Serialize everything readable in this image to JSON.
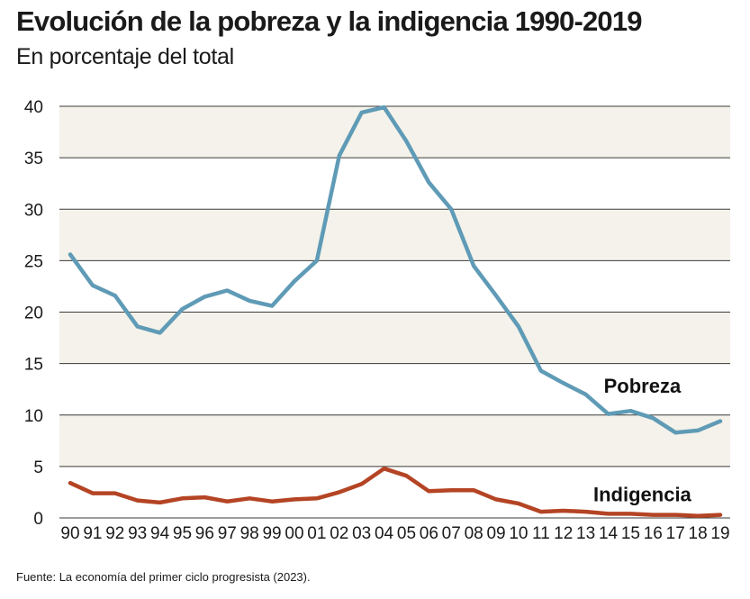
{
  "chart_data": {
    "type": "line",
    "title": "Evolución de la pobreza y la indigencia 1990-2019",
    "subtitle": "En porcentaje del total",
    "source": "Fuente: La economía del primer ciclo progresista (2023).",
    "xlabel": "",
    "ylabel": "",
    "ylim": [
      0,
      40
    ],
    "yticks": [
      "0",
      "5",
      "10",
      "15",
      "20",
      "25",
      "30",
      "35",
      "40"
    ],
    "categories": [
      "90",
      "91",
      "92",
      "93",
      "94",
      "95",
      "96",
      "97",
      "98",
      "99",
      "00",
      "01",
      "02",
      "03",
      "04",
      "05",
      "06",
      "07",
      "08",
      "09",
      "10",
      "11",
      "12",
      "13",
      "14",
      "15",
      "16",
      "17",
      "18",
      "19"
    ],
    "series": [
      {
        "name": "Pobreza",
        "color": "#5f9bb6",
        "values": [
          25.6,
          22.6,
          21.6,
          18.6,
          18.0,
          20.3,
          21.5,
          22.1,
          21.1,
          20.6,
          23.0,
          25.0,
          35.2,
          39.4,
          39.9,
          36.6,
          32.6,
          30.0,
          24.5,
          21.6,
          18.6,
          14.3,
          13.1,
          12.0,
          10.1,
          10.4,
          9.7,
          8.3,
          8.5,
          9.4
        ]
      },
      {
        "name": "Indigencia",
        "color": "#b44424",
        "values": [
          3.4,
          2.4,
          2.4,
          1.7,
          1.5,
          1.9,
          2.0,
          1.6,
          1.9,
          1.6,
          1.8,
          1.9,
          2.5,
          3.3,
          4.8,
          4.1,
          2.6,
          2.7,
          2.7,
          1.8,
          1.4,
          0.6,
          0.7,
          0.6,
          0.4,
          0.4,
          0.3,
          0.3,
          0.2,
          0.3
        ]
      }
    ],
    "bands": true,
    "band_color": "#f4f2ea",
    "grid_color": "#3a3a3a"
  }
}
